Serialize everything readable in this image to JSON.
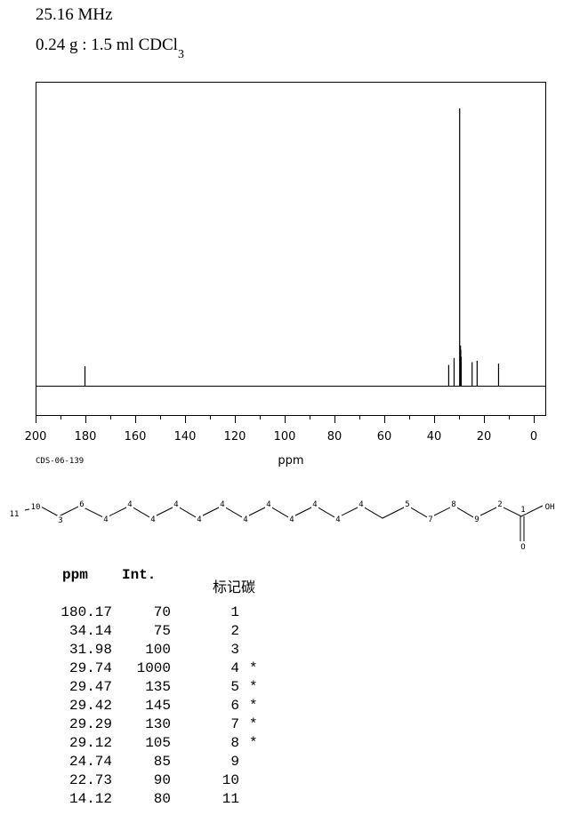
{
  "header": {
    "frequency": "25.16 MHz",
    "sample_prefix": "0.24 g : 1.5 ml CDCl",
    "sample_subscript": "3"
  },
  "chart_data": {
    "type": "line",
    "title": "",
    "xlabel": "ppm",
    "ylabel": "",
    "xlim": [
      200,
      0
    ],
    "x_ticks": [
      "200",
      "180",
      "160",
      "140",
      "120",
      "100",
      "80",
      "60",
      "40",
      "20",
      "0"
    ],
    "x_tick_values": [
      200,
      180,
      160,
      140,
      120,
      100,
      80,
      60,
      40,
      20,
      0
    ],
    "peaks": [
      {
        "ppm": 180.17,
        "intensity": 70
      },
      {
        "ppm": 34.14,
        "intensity": 75
      },
      {
        "ppm": 31.98,
        "intensity": 100
      },
      {
        "ppm": 29.74,
        "intensity": 1000
      },
      {
        "ppm": 29.47,
        "intensity": 135
      },
      {
        "ppm": 29.42,
        "intensity": 145
      },
      {
        "ppm": 29.29,
        "intensity": 130
      },
      {
        "ppm": 29.12,
        "intensity": 105
      },
      {
        "ppm": 24.74,
        "intensity": 85
      },
      {
        "ppm": 22.73,
        "intensity": 90
      },
      {
        "ppm": 14.12,
        "intensity": 80
      }
    ],
    "grid": false
  },
  "code_label": "CDS-06-139",
  "structure": {
    "labels": [
      "11",
      "10",
      "3",
      "6",
      "4",
      "4",
      "4",
      "4",
      "4",
      "4",
      "4",
      "4",
      "4",
      "4",
      "4",
      "4",
      "5",
      "7",
      "8",
      "9",
      "2",
      "1",
      "OH",
      "O"
    ]
  },
  "table": {
    "headers": {
      "ppm": "ppm",
      "int": "Int.",
      "carbon": "标记碳"
    },
    "rows": [
      {
        "ppm": "180.17",
        "int": "70",
        "carbon": "1",
        "mark": ""
      },
      {
        "ppm": "34.14",
        "int": "75",
        "carbon": "2",
        "mark": ""
      },
      {
        "ppm": "31.98",
        "int": "100",
        "carbon": "3",
        "mark": ""
      },
      {
        "ppm": "29.74",
        "int": "1000",
        "carbon": "4",
        "mark": "*"
      },
      {
        "ppm": "29.47",
        "int": "135",
        "carbon": "5",
        "mark": "*"
      },
      {
        "ppm": "29.42",
        "int": "145",
        "carbon": "6",
        "mark": "*"
      },
      {
        "ppm": "29.29",
        "int": "130",
        "carbon": "7",
        "mark": "*"
      },
      {
        "ppm": "29.12",
        "int": "105",
        "carbon": "8",
        "mark": "*"
      },
      {
        "ppm": "24.74",
        "int": "85",
        "carbon": "9",
        "mark": ""
      },
      {
        "ppm": "22.73",
        "int": "90",
        "carbon": "10",
        "mark": ""
      },
      {
        "ppm": "14.12",
        "int": "80",
        "carbon": "11",
        "mark": ""
      }
    ]
  }
}
